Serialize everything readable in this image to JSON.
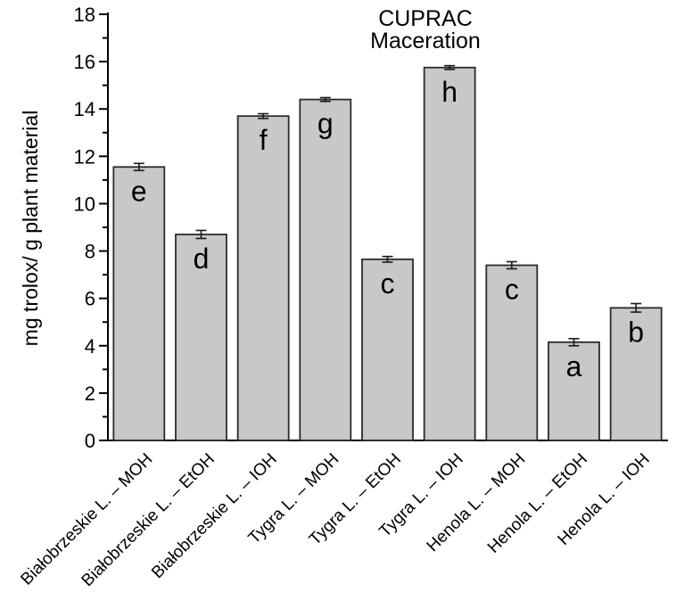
{
  "chart_data": {
    "type": "bar",
    "title": "CUPRAC",
    "subtitle": "Maceration",
    "xlabel": "",
    "ylabel": "mg trolox/ g plant material",
    "ylim": [
      0,
      18
    ],
    "ytick_major_step": 2,
    "ytick_minor_step": 1,
    "grid": false,
    "legend": false,
    "categories": [
      "Białobrzeskie L. – MOH",
      "Białobrzeskie L. – EtOH",
      "Białobrzeskie L. – IOH",
      "Tygra L. – MOH",
      "Tygra L. – EtOH",
      "Tygra L. – IOH",
      "Henola L. – MOH",
      "Henola L. – EtOH",
      "Henola L. – IOH"
    ],
    "values": [
      11.55,
      8.7,
      13.7,
      14.4,
      7.65,
      15.75,
      7.4,
      4.15,
      5.6
    ],
    "errors": [
      0.15,
      0.17,
      0.1,
      0.08,
      0.12,
      0.08,
      0.15,
      0.15,
      0.18
    ],
    "significance_letters": [
      "e",
      "d",
      "f",
      "g",
      "c",
      "h",
      "c",
      "a",
      "b"
    ],
    "colors": {
      "bar_fill": "#c8c8c8",
      "bar_stroke": "#2b2b2b",
      "axis": "#000000",
      "text": "#000000",
      "background": "#ffffff"
    }
  }
}
